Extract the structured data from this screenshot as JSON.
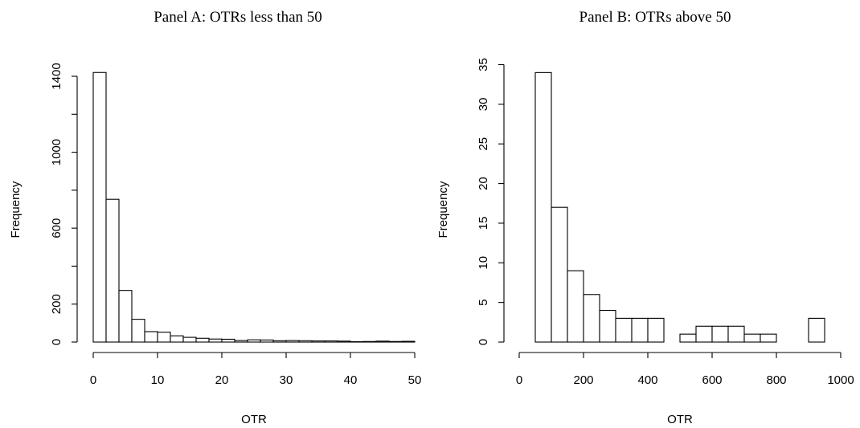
{
  "chart_data": [
    {
      "type": "bar",
      "title": "Panel A: OTRs less than 50",
      "xlabel": "OTR",
      "ylabel": "Frequency",
      "xlim": [
        0,
        50
      ],
      "ylim": [
        0,
        1400
      ],
      "xticks": [
        "0",
        "10",
        "20",
        "30",
        "40",
        "50"
      ],
      "yticks": [
        "0",
        "200",
        "600",
        "1000",
        "1400"
      ],
      "bin_width": 2,
      "bins": [
        {
          "x0": 0,
          "x1": 2,
          "count": 1420
        },
        {
          "x0": 2,
          "x1": 4,
          "count": 752
        },
        {
          "x0": 4,
          "x1": 6,
          "count": 272
        },
        {
          "x0": 6,
          "x1": 8,
          "count": 120
        },
        {
          "x0": 8,
          "x1": 10,
          "count": 55
        },
        {
          "x0": 10,
          "x1": 12,
          "count": 52
        },
        {
          "x0": 12,
          "x1": 14,
          "count": 33
        },
        {
          "x0": 14,
          "x1": 16,
          "count": 25
        },
        {
          "x0": 16,
          "x1": 18,
          "count": 20
        },
        {
          "x0": 18,
          "x1": 20,
          "count": 16
        },
        {
          "x0": 20,
          "x1": 22,
          "count": 15
        },
        {
          "x0": 22,
          "x1": 24,
          "count": 8
        },
        {
          "x0": 24,
          "x1": 26,
          "count": 12
        },
        {
          "x0": 26,
          "x1": 28,
          "count": 11
        },
        {
          "x0": 28,
          "x1": 30,
          "count": 7
        },
        {
          "x0": 30,
          "x1": 32,
          "count": 8
        },
        {
          "x0": 32,
          "x1": 34,
          "count": 7
        },
        {
          "x0": 34,
          "x1": 36,
          "count": 6
        },
        {
          "x0": 36,
          "x1": 38,
          "count": 6
        },
        {
          "x0": 38,
          "x1": 40,
          "count": 5
        },
        {
          "x0": 40,
          "x1": 42,
          "count": 2
        },
        {
          "x0": 42,
          "x1": 44,
          "count": 3
        },
        {
          "x0": 44,
          "x1": 46,
          "count": 5
        },
        {
          "x0": 46,
          "x1": 48,
          "count": 3
        },
        {
          "x0": 48,
          "x1": 50,
          "count": 4
        }
      ]
    },
    {
      "type": "bar",
      "title": "Panel B: OTRs above 50",
      "xlabel": "OTR",
      "ylabel": "Frequency",
      "xlim": [
        0,
        1000
      ],
      "ylim": [
        0,
        35
      ],
      "xticks": [
        "0",
        "200",
        "400",
        "600",
        "800",
        "1000"
      ],
      "yticks": [
        "0",
        "5",
        "10",
        "15",
        "20",
        "25",
        "30",
        "35"
      ],
      "bin_width": 50,
      "bins": [
        {
          "x0": 50,
          "x1": 100,
          "count": 34
        },
        {
          "x0": 100,
          "x1": 150,
          "count": 17
        },
        {
          "x0": 150,
          "x1": 200,
          "count": 9
        },
        {
          "x0": 200,
          "x1": 250,
          "count": 6
        },
        {
          "x0": 250,
          "x1": 300,
          "count": 4
        },
        {
          "x0": 300,
          "x1": 350,
          "count": 3
        },
        {
          "x0": 350,
          "x1": 400,
          "count": 3
        },
        {
          "x0": 400,
          "x1": 450,
          "count": 3
        },
        {
          "x0": 450,
          "x1": 500,
          "count": 0
        },
        {
          "x0": 500,
          "x1": 550,
          "count": 1
        },
        {
          "x0": 550,
          "x1": 600,
          "count": 2
        },
        {
          "x0": 600,
          "x1": 650,
          "count": 2
        },
        {
          "x0": 650,
          "x1": 700,
          "count": 2
        },
        {
          "x0": 700,
          "x1": 750,
          "count": 1
        },
        {
          "x0": 750,
          "x1": 800,
          "count": 1
        },
        {
          "x0": 800,
          "x1": 850,
          "count": 0
        },
        {
          "x0": 850,
          "x1": 900,
          "count": 0
        },
        {
          "x0": 900,
          "x1": 950,
          "count": 3
        }
      ]
    }
  ]
}
